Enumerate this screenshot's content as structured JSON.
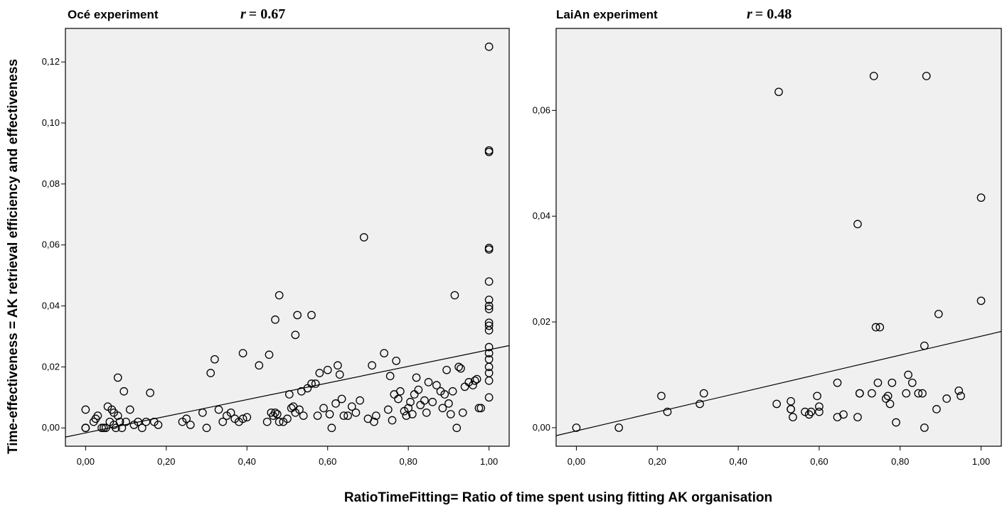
{
  "chart_data": [
    {
      "type": "scatter",
      "title": "Océ experiment",
      "r_label": "r",
      "r_value": "= 0.67",
      "xlim": [
        -0.05,
        1.05
      ],
      "ylim": [
        -0.006,
        0.131
      ],
      "x_ticks": [
        0.0,
        0.2,
        0.4,
        0.6,
        0.8,
        1.0
      ],
      "x_tick_labels": [
        "0,00",
        "0,20",
        "0,40",
        "0,60",
        "0,80",
        "1,00"
      ],
      "y_ticks": [
        0.0,
        0.02,
        0.04,
        0.06,
        0.08,
        0.1,
        0.12
      ],
      "y_tick_labels": [
        "0,00",
        "0,02",
        "0,04",
        "0,06",
        "0,08",
        "0,10",
        "0,12"
      ],
      "fit_line": [
        [
          -0.05,
          -0.003
        ],
        [
          1.05,
          0.027
        ]
      ],
      "points": [
        [
          0.0,
          0.006
        ],
        [
          0.0,
          0.0
        ],
        [
          0.0,
          0.0
        ],
        [
          0.0,
          0.0
        ],
        [
          0.02,
          0.002
        ],
        [
          0.025,
          0.003
        ],
        [
          0.03,
          0.004
        ],
        [
          0.04,
          0.0
        ],
        [
          0.045,
          0.0
        ],
        [
          0.05,
          0.0
        ],
        [
          0.055,
          0.007
        ],
        [
          0.06,
          0.002
        ],
        [
          0.065,
          0.006
        ],
        [
          0.07,
          0.005
        ],
        [
          0.07,
          0.001
        ],
        [
          0.075,
          0.0
        ],
        [
          0.08,
          0.004
        ],
        [
          0.08,
          0.0165
        ],
        [
          0.085,
          0.002
        ],
        [
          0.09,
          0.0
        ],
        [
          0.095,
          0.012
        ],
        [
          0.1,
          0.002
        ],
        [
          0.11,
          0.006
        ],
        [
          0.12,
          0.001
        ],
        [
          0.13,
          0.002
        ],
        [
          0.14,
          0.0
        ],
        [
          0.15,
          0.002
        ],
        [
          0.16,
          0.0115
        ],
        [
          0.17,
          0.002
        ],
        [
          0.18,
          0.001
        ],
        [
          0.24,
          0.002
        ],
        [
          0.25,
          0.003
        ],
        [
          0.26,
          0.001
        ],
        [
          0.29,
          0.005
        ],
        [
          0.3,
          0.0
        ],
        [
          0.31,
          0.018
        ],
        [
          0.32,
          0.0225
        ],
        [
          0.33,
          0.006
        ],
        [
          0.34,
          0.002
        ],
        [
          0.35,
          0.004
        ],
        [
          0.36,
          0.005
        ],
        [
          0.37,
          0.003
        ],
        [
          0.38,
          0.002
        ],
        [
          0.39,
          0.003
        ],
        [
          0.39,
          0.0245
        ],
        [
          0.4,
          0.0035
        ],
        [
          0.43,
          0.0205
        ],
        [
          0.45,
          0.002
        ],
        [
          0.455,
          0.024
        ],
        [
          0.46,
          0.005
        ],
        [
          0.465,
          0.004
        ],
        [
          0.47,
          0.0355
        ],
        [
          0.47,
          0.005
        ],
        [
          0.475,
          0.0045
        ],
        [
          0.48,
          0.002
        ],
        [
          0.48,
          0.0435
        ],
        [
          0.49,
          0.002
        ],
        [
          0.5,
          0.003
        ],
        [
          0.505,
          0.011
        ],
        [
          0.51,
          0.0065
        ],
        [
          0.515,
          0.007
        ],
        [
          0.52,
          0.005
        ],
        [
          0.52,
          0.0305
        ],
        [
          0.525,
          0.037
        ],
        [
          0.53,
          0.006
        ],
        [
          0.535,
          0.012
        ],
        [
          0.54,
          0.004
        ],
        [
          0.55,
          0.013
        ],
        [
          0.56,
          0.037
        ],
        [
          0.56,
          0.0145
        ],
        [
          0.57,
          0.0145
        ],
        [
          0.575,
          0.004
        ],
        [
          0.58,
          0.018
        ],
        [
          0.59,
          0.0065
        ],
        [
          0.6,
          0.019
        ],
        [
          0.605,
          0.0045
        ],
        [
          0.61,
          0.0
        ],
        [
          0.62,
          0.008
        ],
        [
          0.625,
          0.0205
        ],
        [
          0.63,
          0.0175
        ],
        [
          0.635,
          0.0095
        ],
        [
          0.64,
          0.004
        ],
        [
          0.65,
          0.004
        ],
        [
          0.66,
          0.007
        ],
        [
          0.67,
          0.005
        ],
        [
          0.68,
          0.009
        ],
        [
          0.69,
          0.0625
        ],
        [
          0.7,
          0.003
        ],
        [
          0.71,
          0.0205
        ],
        [
          0.715,
          0.002
        ],
        [
          0.72,
          0.004
        ],
        [
          0.74,
          0.0245
        ],
        [
          0.75,
          0.006
        ],
        [
          0.755,
          0.017
        ],
        [
          0.76,
          0.0025
        ],
        [
          0.765,
          0.011
        ],
        [
          0.77,
          0.022
        ],
        [
          0.775,
          0.0095
        ],
        [
          0.78,
          0.012
        ],
        [
          0.79,
          0.0055
        ],
        [
          0.795,
          0.004
        ],
        [
          0.8,
          0.0065
        ],
        [
          0.805,
          0.0085
        ],
        [
          0.81,
          0.0045
        ],
        [
          0.815,
          0.011
        ],
        [
          0.82,
          0.0165
        ],
        [
          0.825,
          0.0125
        ],
        [
          0.83,
          0.0075
        ],
        [
          0.84,
          0.009
        ],
        [
          0.845,
          0.005
        ],
        [
          0.85,
          0.015
        ],
        [
          0.86,
          0.0085
        ],
        [
          0.87,
          0.014
        ],
        [
          0.88,
          0.012
        ],
        [
          0.885,
          0.0065
        ],
        [
          0.89,
          0.011
        ],
        [
          0.895,
          0.019
        ],
        [
          0.9,
          0.008
        ],
        [
          0.905,
          0.0045
        ],
        [
          0.91,
          0.012
        ],
        [
          0.915,
          0.0435
        ],
        [
          0.92,
          0.0
        ],
        [
          0.925,
          0.02
        ],
        [
          0.93,
          0.0195
        ],
        [
          0.935,
          0.005
        ],
        [
          0.94,
          0.0135
        ],
        [
          0.95,
          0.015
        ],
        [
          0.96,
          0.014
        ],
        [
          0.965,
          0.0155
        ],
        [
          0.97,
          0.016
        ],
        [
          0.975,
          0.0065
        ],
        [
          0.98,
          0.0065
        ],
        [
          1.0,
          0.125
        ],
        [
          1.0,
          0.091
        ],
        [
          1.0,
          0.0905
        ],
        [
          1.0,
          0.059
        ],
        [
          1.0,
          0.0585
        ],
        [
          1.0,
          0.048
        ],
        [
          1.0,
          0.042
        ],
        [
          1.0,
          0.04
        ],
        [
          1.0,
          0.039
        ],
        [
          1.0,
          0.0345
        ],
        [
          1.0,
          0.0335
        ],
        [
          1.0,
          0.032
        ],
        [
          1.0,
          0.0265
        ],
        [
          1.0,
          0.0245
        ],
        [
          1.0,
          0.0225
        ],
        [
          1.0,
          0.02
        ],
        [
          1.0,
          0.018
        ],
        [
          1.0,
          0.0155
        ],
        [
          1.0,
          0.01
        ]
      ]
    },
    {
      "type": "scatter",
      "title": "LaiAn experiment",
      "r_label": "r",
      "r_value": "= 0.48",
      "xlim": [
        -0.05,
        1.05
      ],
      "ylim": [
        -0.0035,
        0.0755
      ],
      "x_ticks": [
        0.0,
        0.2,
        0.4,
        0.6,
        0.8,
        1.0
      ],
      "x_tick_labels": [
        "0,00",
        "0,20",
        "0,40",
        "0,60",
        "0,80",
        "1,00"
      ],
      "y_ticks": [
        0.0,
        0.02,
        0.04,
        0.06
      ],
      "y_tick_labels": [
        "0,00",
        "0,02",
        "0,04",
        "0,06"
      ],
      "fit_line": [
        [
          -0.05,
          -0.0015
        ],
        [
          1.05,
          0.0182
        ]
      ],
      "points": [
        [
          0.0,
          0.0
        ],
        [
          0.105,
          0.0
        ],
        [
          0.21,
          0.006
        ],
        [
          0.225,
          0.003
        ],
        [
          0.305,
          0.0045
        ],
        [
          0.315,
          0.0065
        ],
        [
          0.5,
          0.0635
        ],
        [
          0.495,
          0.0045
        ],
        [
          0.53,
          0.005
        ],
        [
          0.53,
          0.0035
        ],
        [
          0.535,
          0.002
        ],
        [
          0.53,
          0.0035
        ],
        [
          0.565,
          0.003
        ],
        [
          0.575,
          0.0025
        ],
        [
          0.58,
          0.003
        ],
        [
          0.595,
          0.006
        ],
        [
          0.6,
          0.004
        ],
        [
          0.6,
          0.003
        ],
        [
          0.645,
          0.002
        ],
        [
          0.645,
          0.0085
        ],
        [
          0.66,
          0.0025
        ],
        [
          0.695,
          0.0385
        ],
        [
          0.695,
          0.002
        ],
        [
          0.7,
          0.0065
        ],
        [
          0.7,
          0.0065
        ],
        [
          0.73,
          0.0065
        ],
        [
          0.735,
          0.0665
        ],
        [
          0.74,
          0.019
        ],
        [
          0.745,
          0.0085
        ],
        [
          0.75,
          0.019
        ],
        [
          0.765,
          0.0055
        ],
        [
          0.77,
          0.006
        ],
        [
          0.775,
          0.0045
        ],
        [
          0.78,
          0.0085
        ],
        [
          0.79,
          0.001
        ],
        [
          0.815,
          0.0065
        ],
        [
          0.82,
          0.01
        ],
        [
          0.83,
          0.0085
        ],
        [
          0.845,
          0.0065
        ],
        [
          0.855,
          0.0065
        ],
        [
          0.86,
          0.0155
        ],
        [
          0.86,
          0.0
        ],
        [
          0.865,
          0.0665
        ],
        [
          0.89,
          0.0035
        ],
        [
          0.895,
          0.0215
        ],
        [
          0.915,
          0.0055
        ],
        [
          0.945,
          0.007
        ],
        [
          0.95,
          0.006
        ],
        [
          1.0,
          0.0435
        ],
        [
          1.0,
          0.024
        ]
      ]
    }
  ],
  "shared_axes": {
    "ylabel": "Time-effectiveness = AK retrieval efficiency and effectiveness",
    "xlabel": "RatioTimeFitting= Ratio of time spent using fitting AK organisation"
  }
}
